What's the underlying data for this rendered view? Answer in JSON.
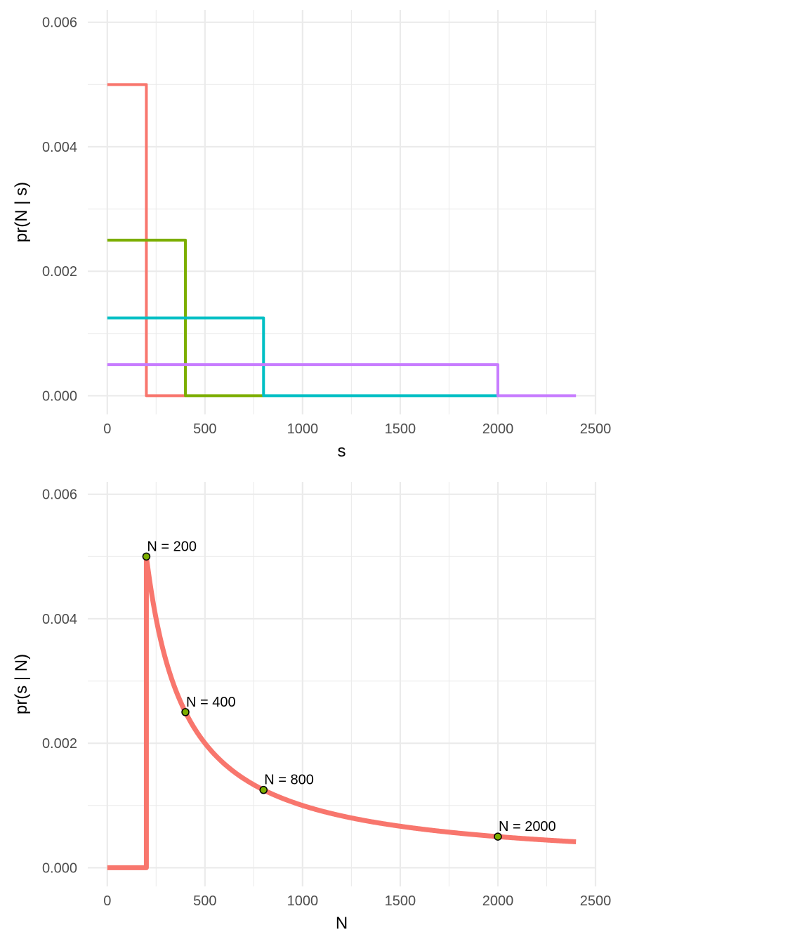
{
  "chart_data": [
    {
      "type": "line",
      "xlabel": "s",
      "ylabel": "pr(N | s)",
      "xlim": [
        -100,
        2500
      ],
      "ylim": [
        -0.0003,
        0.0062
      ],
      "xticks": [
        0,
        500,
        1000,
        1500,
        2000,
        2500
      ],
      "xtick_labels": [
        "0",
        "500",
        "1000",
        "1500",
        "2000",
        "2500"
      ],
      "yticks": [
        0,
        0.002,
        0.004,
        0.006
      ],
      "ytick_labels": [
        "0.000",
        "0.002",
        "0.004",
        "0.006"
      ],
      "grid": true,
      "legend": "none",
      "series": [
        {
          "color": "#F8766D",
          "points": [
            [
              0,
              0.005
            ],
            [
              200,
              0.005
            ],
            [
              200,
              0
            ],
            [
              400,
              0
            ]
          ]
        },
        {
          "color": "#7CAE00",
          "points": [
            [
              0,
              0.0025
            ],
            [
              400,
              0.0025
            ],
            [
              400,
              0
            ],
            [
              800,
              0
            ]
          ]
        },
        {
          "color": "#00BFC4",
          "points": [
            [
              0,
              0.00125
            ],
            [
              800,
              0.00125
            ],
            [
              800,
              0
            ],
            [
              2000,
              0
            ]
          ]
        },
        {
          "color": "#C77CFF",
          "points": [
            [
              0,
              0.0005
            ],
            [
              2000,
              0.0005
            ],
            [
              2000,
              0
            ],
            [
              2400,
              0
            ]
          ]
        }
      ]
    },
    {
      "type": "line",
      "xlabel": "N",
      "ylabel": "pr(s | N)",
      "xlim": [
        -100,
        2500
      ],
      "ylim": [
        -0.0003,
        0.0062
      ],
      "xticks": [
        0,
        500,
        1000,
        1500,
        2000,
        2500
      ],
      "xtick_labels": [
        "0",
        "500",
        "1000",
        "1500",
        "2000",
        "2500"
      ],
      "yticks": [
        0,
        0.002,
        0.004,
        0.006
      ],
      "ytick_labels": [
        "0.000",
        "0.002",
        "0.004",
        "0.006"
      ],
      "grid": true,
      "legend": "none",
      "curve": {
        "formula": "pr = 1/N for N >= 200, else 0",
        "color": "#F8766D",
        "x_range": [
          0,
          2400
        ],
        "threshold": 200
      },
      "points": [
        {
          "x": 200,
          "y": 0.005,
          "label": "N = 200"
        },
        {
          "x": 400,
          "y": 0.0025,
          "label": "N = 400"
        },
        {
          "x": 800,
          "y": 0.00125,
          "label": "N = 800"
        },
        {
          "x": 2000,
          "y": 0.0005,
          "label": "N = 2000"
        }
      ],
      "point_color": "#7CAE00"
    }
  ]
}
